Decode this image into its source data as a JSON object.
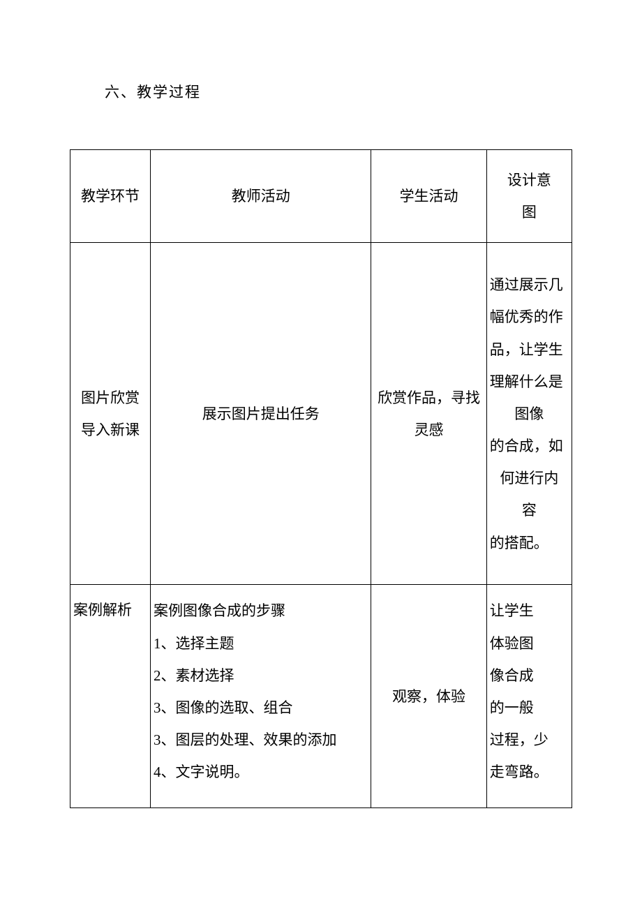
{
  "heading": "六、教学过程",
  "table": {
    "header": {
      "col1": "教学环节",
      "col2": "教师活动",
      "col3": "学生活动",
      "col4_line1": "设计意",
      "col4_line2": "图"
    },
    "row2": {
      "col1_line1": "图片欣赏",
      "col1_line2": "导入新课",
      "col2": "展示图片提出任务",
      "col3_line1": "欣赏作品，寻找",
      "col3_line2": "灵感",
      "col4_line1": "通过展示几",
      "col4_line2": "幅优秀的作",
      "col4_line3": "品，让学生",
      "col4_line4": "理解什么是",
      "col4_line5": "图像",
      "col4_line6": "的合成，如",
      "col4_line7": "何进行内",
      "col4_line8": "容",
      "col4_line9": "的搭配。"
    },
    "row3": {
      "col1": "案例解析",
      "col2_line1": "案例图像合成的步骤",
      "col2_line2": "1、选择主题",
      "col2_line3": "2、素材选择",
      "col2_line4": "3、图像的选取、组合",
      "col2_line5": "3、图层的处理、效果的添加",
      "col2_line6": "4、文字说明。",
      "col3": "观察，体验",
      "col4_line1": "让学生",
      "col4_line2": "体验图",
      "col4_line3": "像合成",
      "col4_line4": "的一般",
      "col4_line5": "过程，少",
      "col4_line6": "走弯路。"
    }
  }
}
